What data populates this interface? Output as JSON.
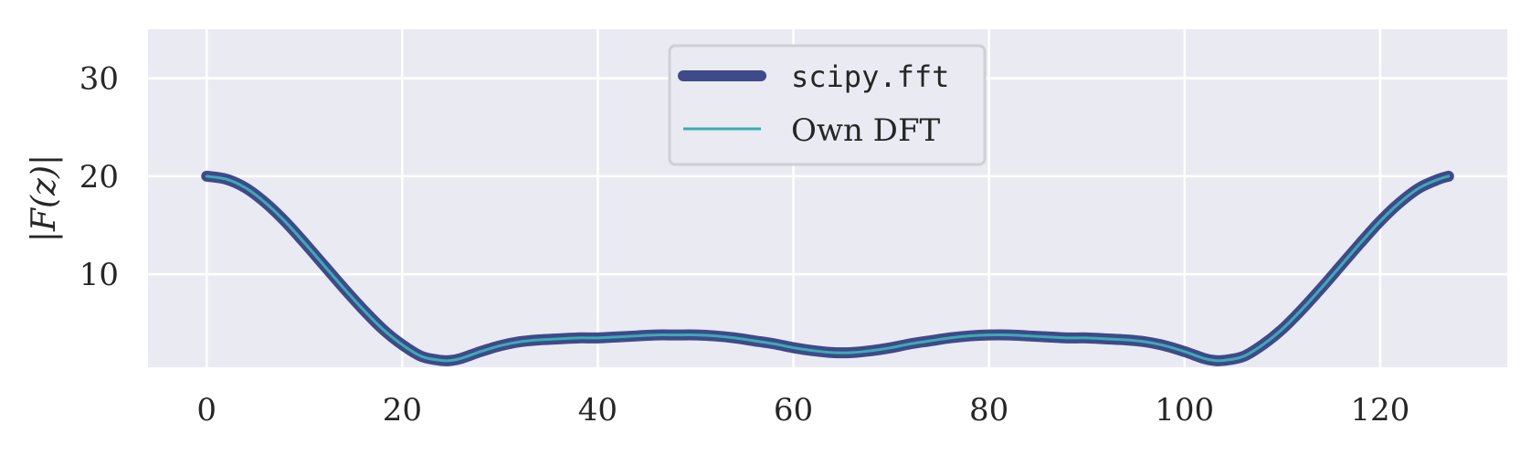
{
  "chart_data": {
    "type": "line",
    "title": "",
    "xlabel": "",
    "ylabel": "|F(z)|",
    "xlim": [
      -6,
      133
    ],
    "ylim": [
      0.5,
      35
    ],
    "xticks": [
      0,
      20,
      40,
      60,
      80,
      100,
      120
    ],
    "yticks": [
      10,
      20,
      30
    ],
    "grid": true,
    "legend_position": "top-center",
    "background_color": "#eaeaf2",
    "series": [
      {
        "name": "scipy.fft",
        "color": "#3f4a8a",
        "style": "thick",
        "x": [
          0,
          2,
          4,
          6,
          8,
          10,
          12,
          14,
          16,
          18,
          20,
          22,
          24,
          25,
          26,
          28,
          30,
          32,
          34,
          36,
          38,
          40,
          42,
          44,
          46,
          48,
          50,
          52,
          54,
          56,
          58,
          60,
          62,
          64,
          66,
          68,
          70,
          72,
          74,
          76,
          78,
          80,
          82,
          84,
          86,
          88,
          90,
          92,
          94,
          96,
          98,
          100,
          102,
          103,
          104,
          106,
          108,
          110,
          112,
          114,
          116,
          118,
          120,
          122,
          124,
          126,
          127
        ],
        "values": [
          20.0,
          19.7,
          18.8,
          17.3,
          15.4,
          13.2,
          10.9,
          8.6,
          6.4,
          4.4,
          2.8,
          1.6,
          1.2,
          1.2,
          1.4,
          2.1,
          2.7,
          3.1,
          3.3,
          3.4,
          3.5,
          3.5,
          3.6,
          3.7,
          3.8,
          3.8,
          3.8,
          3.7,
          3.5,
          3.2,
          2.9,
          2.5,
          2.2,
          2.0,
          2.0,
          2.2,
          2.5,
          2.9,
          3.2,
          3.5,
          3.7,
          3.8,
          3.8,
          3.7,
          3.6,
          3.5,
          3.5,
          3.4,
          3.3,
          3.1,
          2.7,
          2.1,
          1.4,
          1.2,
          1.2,
          1.6,
          2.8,
          4.4,
          6.4,
          8.6,
          10.9,
          13.2,
          15.4,
          17.3,
          18.8,
          19.7,
          20.0
        ]
      },
      {
        "name": "Own DFT",
        "color": "#3aacb3",
        "style": "thin",
        "x": [
          0,
          2,
          4,
          6,
          8,
          10,
          12,
          14,
          16,
          18,
          20,
          22,
          24,
          25,
          26,
          28,
          30,
          32,
          34,
          36,
          38,
          40,
          42,
          44,
          46,
          48,
          50,
          52,
          54,
          56,
          58,
          60,
          62,
          64,
          66,
          68,
          70,
          72,
          74,
          76,
          78,
          80,
          82,
          84,
          86,
          88,
          90,
          92,
          94,
          96,
          98,
          100,
          102,
          103,
          104,
          106,
          108,
          110,
          112,
          114,
          116,
          118,
          120,
          122,
          124,
          126,
          127
        ],
        "values": [
          20.0,
          19.7,
          18.8,
          17.3,
          15.4,
          13.2,
          10.9,
          8.6,
          6.4,
          4.4,
          2.8,
          1.6,
          1.2,
          1.2,
          1.4,
          2.1,
          2.7,
          3.1,
          3.3,
          3.4,
          3.5,
          3.5,
          3.6,
          3.7,
          3.8,
          3.8,
          3.8,
          3.7,
          3.5,
          3.2,
          2.9,
          2.5,
          2.2,
          2.0,
          2.0,
          2.2,
          2.5,
          2.9,
          3.2,
          3.5,
          3.7,
          3.8,
          3.8,
          3.7,
          3.6,
          3.5,
          3.5,
          3.4,
          3.3,
          3.1,
          2.7,
          2.1,
          1.4,
          1.2,
          1.2,
          1.6,
          2.8,
          4.4,
          6.4,
          8.6,
          10.9,
          13.2,
          15.4,
          17.3,
          18.8,
          19.7,
          20.0
        ]
      }
    ]
  }
}
